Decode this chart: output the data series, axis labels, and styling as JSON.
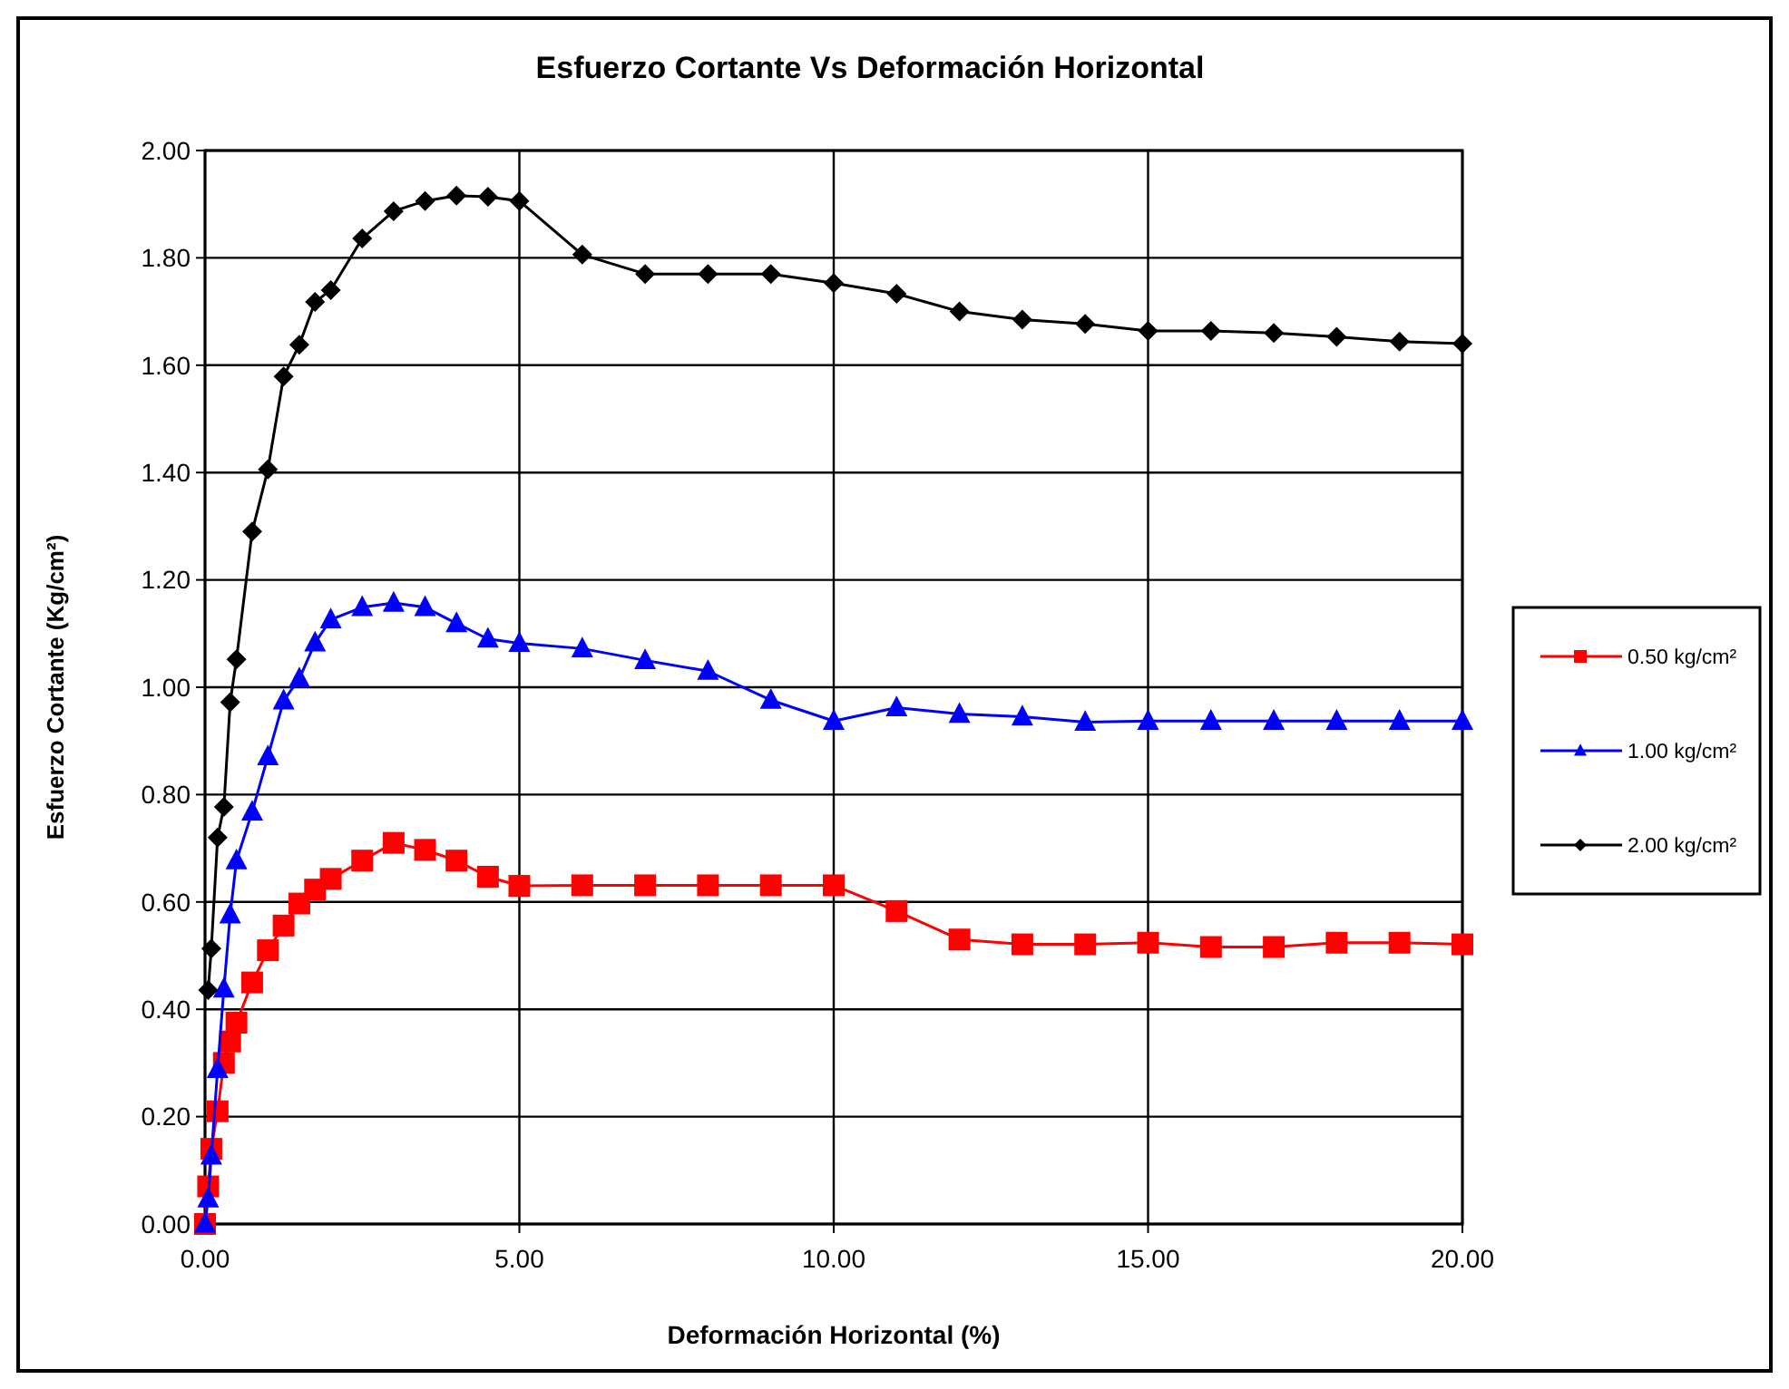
{
  "chart_data": {
    "type": "line",
    "title": "Esfuerzo Cortante Vs Deformación Horizontal",
    "xlabel": "Deformación Horizontal (%)",
    "ylabel": "Esfuerzo Cortante (Kg/cm²)",
    "xlim": [
      0,
      20
    ],
    "ylim": [
      0,
      2
    ],
    "xticks": [
      {
        "value": 0,
        "label": "0.00"
      },
      {
        "value": 5,
        "label": "5.00"
      },
      {
        "value": 10,
        "label": "10.00"
      },
      {
        "value": 15,
        "label": "15.00"
      },
      {
        "value": 20,
        "label": "20.00"
      }
    ],
    "yticks": [
      {
        "value": 0,
        "label": "0.00"
      },
      {
        "value": 0.2,
        "label": "0.20"
      },
      {
        "value": 0.4,
        "label": "0.40"
      },
      {
        "value": 0.6,
        "label": "0.60"
      },
      {
        "value": 0.8,
        "label": "0.80"
      },
      {
        "value": 1,
        "label": "1.00"
      },
      {
        "value": 1.2,
        "label": "1.20"
      },
      {
        "value": 1.4,
        "label": "1.40"
      },
      {
        "value": 1.6,
        "label": "1.60"
      },
      {
        "value": 1.8,
        "label": "1.80"
      },
      {
        "value": 2,
        "label": "2.00"
      }
    ],
    "grid": true,
    "legend": "right",
    "line_style": "solid",
    "series": [
      {
        "name": "0.50 kg/cm²",
        "color": "#ff0000",
        "marker": "square",
        "x": [
          0,
          0.05,
          0.1,
          0.2,
          0.3,
          0.4,
          0.5,
          0.75,
          1,
          1.25,
          1.5,
          1.75,
          2,
          2.5,
          3,
          3.5,
          4,
          4.5,
          5,
          6,
          7,
          8,
          9,
          10,
          11,
          12,
          13,
          14,
          15,
          16,
          17,
          18,
          19,
          20
        ],
        "values": [
          0,
          0.07,
          0.14,
          0.21,
          0.3,
          0.34,
          0.375,
          0.45,
          0.51,
          0.556,
          0.597,
          0.623,
          0.643,
          0.677,
          0.71,
          0.697,
          0.677,
          0.647,
          0.63,
          0.631,
          0.631,
          0.631,
          0.631,
          0.631,
          0.583,
          0.53,
          0.521,
          0.521,
          0.524,
          0.516,
          0.516,
          0.524,
          0.524,
          0.521
        ]
      },
      {
        "name": "1.00 kg/cm²",
        "color": "#0000ff",
        "marker": "triangle",
        "x": [
          0,
          0.05,
          0.1,
          0.2,
          0.3,
          0.4,
          0.5,
          0.75,
          1,
          1.25,
          1.5,
          1.75,
          2,
          2.5,
          3,
          3.5,
          4,
          4.5,
          5,
          6,
          7,
          8,
          9,
          10,
          11,
          12,
          13,
          14,
          15,
          16,
          17,
          18,
          19,
          20
        ],
        "values": [
          0,
          0.047,
          0.127,
          0.288,
          0.438,
          0.576,
          0.677,
          0.768,
          0.871,
          0.975,
          1.016,
          1.083,
          1.126,
          1.149,
          1.157,
          1.149,
          1.119,
          1.09,
          1.082,
          1.072,
          1.05,
          1.03,
          0.976,
          0.937,
          0.962,
          0.95,
          0.945,
          0.935,
          0.937,
          0.937,
          0.937,
          0.937,
          0.937,
          0.937
        ]
      },
      {
        "name": "2.00 kg/cm²",
        "color": "#000000",
        "marker": "diamond",
        "x": [
          0.05,
          0.1,
          0.2,
          0.3,
          0.4,
          0.5,
          0.75,
          1,
          1.25,
          1.5,
          1.75,
          2,
          2.5,
          3,
          3.5,
          4,
          4.5,
          5,
          6,
          7,
          8,
          9,
          10,
          11,
          12,
          13,
          14,
          15,
          16,
          17,
          18,
          19,
          20
        ],
        "values": [
          0.436,
          0.513,
          0.72,
          0.777,
          0.972,
          1.052,
          1.29,
          1.406,
          1.579,
          1.638,
          1.718,
          1.74,
          1.836,
          1.887,
          1.906,
          1.916,
          1.914,
          1.906,
          1.806,
          1.77,
          1.77,
          1.77,
          1.753,
          1.733,
          1.7,
          1.685,
          1.677,
          1.664,
          1.664,
          1.66,
          1.653,
          1.644,
          1.64
        ]
      }
    ]
  }
}
